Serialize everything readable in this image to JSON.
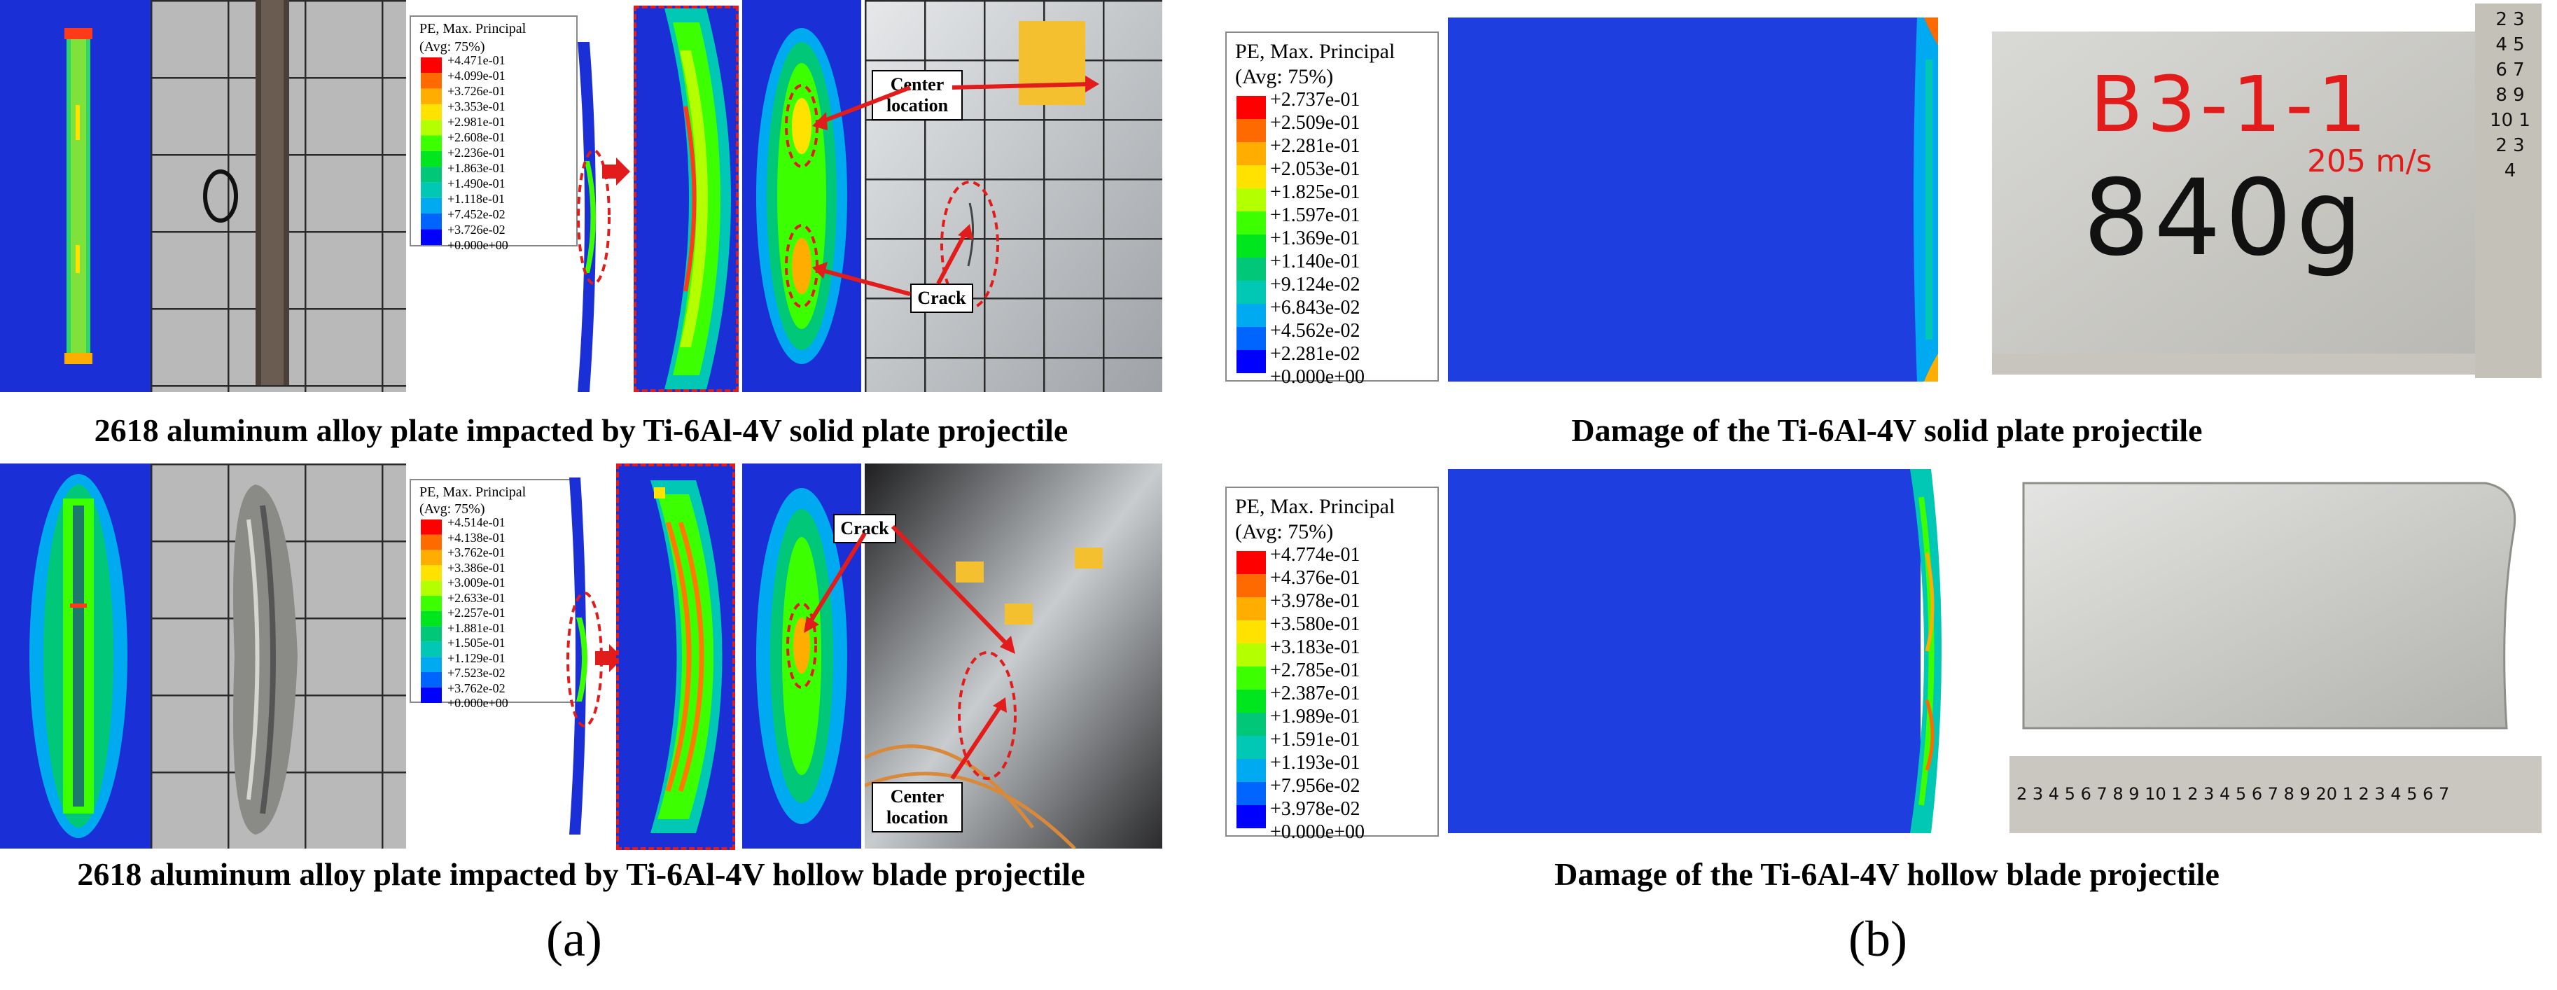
{
  "panel_a": {
    "label": "(a)",
    "caption_top": "2618 aluminum alloy plate impacted by Ti-6Al-4V solid plate projectile",
    "caption_bottom": "2618 aluminum alloy plate impacted by Ti-6Al-4V hollow blade projectile",
    "legend_top": {
      "title": "PE, Max. Principal",
      "subtitle": "(Avg: 75%)",
      "values": [
        "+4.471e-01",
        "+4.099e-01",
        "+3.726e-01",
        "+3.353e-01",
        "+2.981e-01",
        "+2.608e-01",
        "+2.236e-01",
        "+1.863e-01",
        "+1.490e-01",
        "+1.118e-01",
        "+7.452e-02",
        "+3.726e-02",
        "+0.000e+00"
      ]
    },
    "legend_bottom": {
      "title": "PE, Max. Principal",
      "subtitle": "(Avg: 75%)",
      "values": [
        "+4.514e-01",
        "+4.138e-01",
        "+3.762e-01",
        "+3.386e-01",
        "+3.009e-01",
        "+2.633e-01",
        "+2.257e-01",
        "+1.881e-01",
        "+1.505e-01",
        "+1.129e-01",
        "+7.523e-02",
        "+3.762e-02",
        "+0.000e+00"
      ]
    },
    "callouts": {
      "center_location": "Center location",
      "crack": "Crack"
    }
  },
  "panel_b": {
    "label": "(b)",
    "caption_top": "Damage of the Ti-6Al-4V solid plate projectile",
    "caption_bottom": "Damage of the Ti-6Al-4V hollow blade projectile",
    "legend_top": {
      "title": "PE, Max. Principal",
      "subtitle": "(Avg: 75%)",
      "values": [
        "+2.737e-01",
        "+2.509e-01",
        "+2.281e-01",
        "+2.053e-01",
        "+1.825e-01",
        "+1.597e-01",
        "+1.369e-01",
        "+1.140e-01",
        "+9.124e-02",
        "+6.843e-02",
        "+4.562e-02",
        "+2.281e-02",
        "+0.000e+00"
      ]
    },
    "legend_bottom": {
      "title": "PE, Max. Principal",
      "subtitle": "(Avg: 75%)",
      "values": [
        "+4.774e-01",
        "+4.376e-01",
        "+3.978e-01",
        "+3.580e-01",
        "+3.183e-01",
        "+2.785e-01",
        "+2.387e-01",
        "+1.989e-01",
        "+1.591e-01",
        "+1.193e-01",
        "+7.956e-02",
        "+3.978e-02",
        "+0.000e+00"
      ]
    },
    "plate_marking_line1": "B3-1-1",
    "plate_marking_speed": "205 m/s",
    "plate_marking_line2": "840g",
    "ruler_top": "2 3 4 5 6 7 8 9 10 1 2 3 4",
    "ruler_bottom": "2 3 4 5 6 7 8 9 10 1 2 3 4 5 6 7 8 9 20 1 2 3 4 5 6 7"
  },
  "colors": {
    "contour": [
      "#ff0000",
      "#ff6a00",
      "#ffae00",
      "#ffe200",
      "#b4ff00",
      "#3cff00",
      "#00e61e",
      "#00c878",
      "#00c8b4",
      "#00aaf0",
      "#0064ff",
      "#0000ff"
    ],
    "dashed_red": "#e21b1b",
    "fe_blue": "#1f3ee0"
  }
}
